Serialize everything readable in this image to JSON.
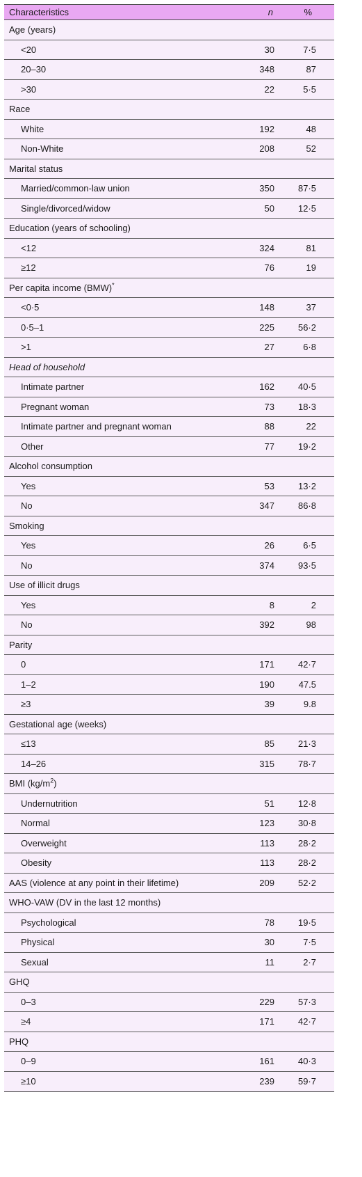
{
  "header": {
    "characteristics": "Characteristics",
    "n": "n",
    "pct": "%"
  },
  "rows": [
    {
      "type": "group",
      "label": "Age (years)"
    },
    {
      "type": "sub",
      "label": "<20",
      "n": "30",
      "pct": "7·5"
    },
    {
      "type": "sub",
      "label": "20–30",
      "n": "348",
      "pct": "87"
    },
    {
      "type": "sub",
      "label": ">30",
      "n": "22",
      "pct": "5·5"
    },
    {
      "type": "group",
      "label": "Race"
    },
    {
      "type": "sub",
      "label": "White",
      "n": "192",
      "pct": "48"
    },
    {
      "type": "sub",
      "label": "Non-White",
      "n": "208",
      "pct": "52"
    },
    {
      "type": "group",
      "label": "Marital status"
    },
    {
      "type": "sub",
      "label": "Married/common-law union",
      "n": "350",
      "pct": "87·5"
    },
    {
      "type": "sub",
      "label": "Single/divorced/widow",
      "n": "50",
      "pct": "12·5"
    },
    {
      "type": "group",
      "label": "Education (years of schooling)"
    },
    {
      "type": "sub",
      "label": "<12",
      "n": "324",
      "pct": "81"
    },
    {
      "type": "sub",
      "label": "≥12",
      "n": "76",
      "pct": "19"
    },
    {
      "type": "group",
      "label": "Per capita income (BMW)",
      "sup": "*"
    },
    {
      "type": "sub",
      "label": "<0·5",
      "n": "148",
      "pct": "37"
    },
    {
      "type": "sub",
      "label": "0·5–1",
      "n": "225",
      "pct": "56·2"
    },
    {
      "type": "sub",
      "label": ">1",
      "n": "27",
      "pct": "6·8"
    },
    {
      "type": "group",
      "label": "Head of household",
      "italic": true
    },
    {
      "type": "sub",
      "label": "Intimate partner",
      "n": "162",
      "pct": "40·5"
    },
    {
      "type": "sub",
      "label": "Pregnant woman",
      "n": "73",
      "pct": "18·3"
    },
    {
      "type": "sub",
      "label": "Intimate partner and pregnant woman",
      "n": "88",
      "pct": "22"
    },
    {
      "type": "sub",
      "label": "Other",
      "n": "77",
      "pct": "19·2"
    },
    {
      "type": "group",
      "label": "Alcohol consumption"
    },
    {
      "type": "sub",
      "label": "Yes",
      "n": "53",
      "pct": "13·2"
    },
    {
      "type": "sub",
      "label": "No",
      "n": "347",
      "pct": "86·8"
    },
    {
      "type": "group",
      "label": "Smoking"
    },
    {
      "type": "sub",
      "label": "Yes",
      "n": "26",
      "pct": "6·5"
    },
    {
      "type": "sub",
      "label": "No",
      "n": "374",
      "pct": "93·5"
    },
    {
      "type": "group",
      "label": "Use of illicit drugs"
    },
    {
      "type": "sub",
      "label": "Yes",
      "n": "8",
      "pct": "2"
    },
    {
      "type": "sub",
      "label": "No",
      "n": "392",
      "pct": "98"
    },
    {
      "type": "group",
      "label": "Parity"
    },
    {
      "type": "sub",
      "label": "0",
      "n": "171",
      "pct": "42·7"
    },
    {
      "type": "sub",
      "label": "1–2",
      "n": "190",
      "pct": "47.5"
    },
    {
      "type": "sub",
      "label": "≥3",
      "n": "39",
      "pct": "9.8"
    },
    {
      "type": "group",
      "label": "Gestational age (weeks)"
    },
    {
      "type": "sub",
      "label": "≤13",
      "n": "85",
      "pct": "21·3"
    },
    {
      "type": "sub",
      "label": "14–26",
      "n": "315",
      "pct": "78·7"
    },
    {
      "type": "group",
      "label": "BMI (kg/m",
      "sup": "2",
      "suffix": ")"
    },
    {
      "type": "sub",
      "label": "Undernutrition",
      "n": "51",
      "pct": "12·8"
    },
    {
      "type": "sub",
      "label": "Normal",
      "n": "123",
      "pct": "30·8"
    },
    {
      "type": "sub",
      "label": "Overweight",
      "n": "113",
      "pct": "28·2"
    },
    {
      "type": "sub",
      "label": "Obesity",
      "n": "113",
      "pct": "28·2"
    },
    {
      "type": "group",
      "label": "AAS (violence at any point in their lifetime)",
      "n": "209",
      "pct": "52·2"
    },
    {
      "type": "group",
      "label": "WHO-VAW (DV in the last 12 months)"
    },
    {
      "type": "sub",
      "label": "Psychological",
      "n": "78",
      "pct": "19·5"
    },
    {
      "type": "sub",
      "label": "Physical",
      "n": "30",
      "pct": "7·5"
    },
    {
      "type": "sub",
      "label": "Sexual",
      "n": "11",
      "pct": "2·7"
    },
    {
      "type": "group",
      "label": "GHQ"
    },
    {
      "type": "sub",
      "label": "0–3",
      "n": "229",
      "pct": "57·3"
    },
    {
      "type": "sub",
      "label": "≥4",
      "n": "171",
      "pct": "42·7"
    },
    {
      "type": "group",
      "label": "PHQ"
    },
    {
      "type": "sub",
      "label": "0–9",
      "n": "161",
      "pct": "40·3"
    },
    {
      "type": "sub",
      "label": "≥10",
      "n": "239",
      "pct": "59·7"
    }
  ]
}
